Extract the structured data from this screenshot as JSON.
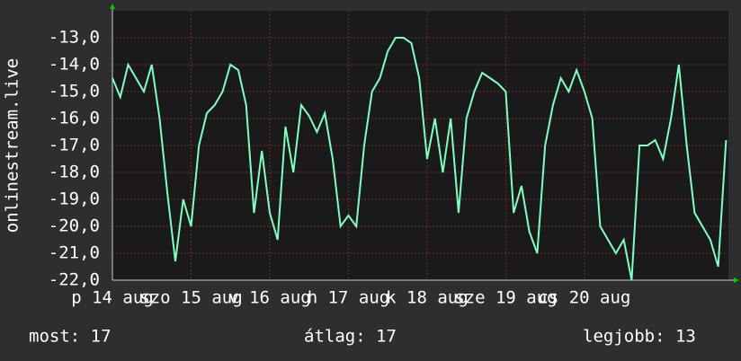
{
  "chart_data": {
    "type": "line",
    "ylabel": "onlinestream.live",
    "x": [
      0,
      0.1,
      0.2,
      0.3,
      0.4,
      0.5,
      0.6,
      0.7,
      0.8,
      0.9,
      1,
      1.1,
      1.2,
      1.3,
      1.4,
      1.5,
      1.6,
      1.7,
      1.8,
      1.9,
      2,
      2.1,
      2.2,
      2.3,
      2.4,
      2.5,
      2.6,
      2.7,
      2.8,
      2.9,
      3,
      3.1,
      3.2,
      3.3,
      3.4,
      3.5,
      3.6,
      3.7,
      3.8,
      3.9,
      4,
      4.1,
      4.2,
      4.3,
      4.4,
      4.5,
      4.6,
      4.7,
      4.8,
      4.9,
      5,
      5.1,
      5.2,
      5.3,
      5.4,
      5.5,
      5.6,
      5.7,
      5.8,
      5.9,
      6,
      6.1,
      6.2,
      6.3,
      6.4,
      6.5,
      6.6,
      6.7,
      6.8,
      6.9,
      7,
      7.1,
      7.2,
      7.3,
      7.4,
      7.5,
      7.6,
      7.7,
      7.8
    ],
    "series": [
      {
        "color": "#80ffc0",
        "values": [
          -14.5,
          -15.2,
          -14,
          -14.5,
          -15,
          -14,
          -16,
          -18.8,
          -21.3,
          -19,
          -20,
          -17,
          -15.8,
          -15.5,
          -15,
          -14,
          -14.2,
          -15.5,
          -19.5,
          -17.2,
          -19.5,
          -20.5,
          -16.3,
          -18,
          -15.5,
          -15.9,
          -16.5,
          -15.8,
          -17.5,
          -20,
          -19.6,
          -20,
          -17,
          -15,
          -14.5,
          -13.5,
          -13,
          -13,
          -13.2,
          -14.5,
          -17.5,
          -16,
          -18,
          -16,
          -19.5,
          -16,
          -15,
          -14.3,
          -14.5,
          -14.7,
          -15,
          -19.5,
          -18.5,
          -20.2,
          -21,
          -17,
          -15.5,
          -14.5,
          -15,
          -14.2,
          -15,
          -16,
          -20,
          -20.5,
          -21,
          -20.5,
          -22,
          -17,
          -17,
          -16.8,
          -17.5,
          -16,
          -14,
          -17,
          -19.5,
          -20,
          -20.5,
          -21.5,
          -16.8
        ]
      }
    ],
    "xlim": [
      0,
      7.83
    ],
    "xticks": [
      {
        "value": 0,
        "label": "p 14 aug"
      },
      {
        "value": 1,
        "label": "szo 15 aug"
      },
      {
        "value": 2,
        "label": "v 16 aug"
      },
      {
        "value": 3,
        "label": "h 17 aug"
      },
      {
        "value": 4,
        "label": "k 18 aug"
      },
      {
        "value": 5,
        "label": "sze 19 aug"
      },
      {
        "value": 6,
        "label": "cs 20 aug"
      }
    ],
    "ylim": [
      -22,
      -12
    ],
    "yticks": [
      {
        "value": -13,
        "label": "-13,0"
      },
      {
        "value": -14,
        "label": "-14,0"
      },
      {
        "value": -15,
        "label": "-15,0"
      },
      {
        "value": -16,
        "label": "-16,0"
      },
      {
        "value": -17,
        "label": "-17,0"
      },
      {
        "value": -18,
        "label": "-18,0"
      },
      {
        "value": -19,
        "label": "-19,0"
      },
      {
        "value": -20,
        "label": "-20,0"
      },
      {
        "value": -21,
        "label": "-21,0"
      },
      {
        "value": -22,
        "label": "-22,0"
      }
    ],
    "grid": true,
    "footer": [
      "most: 17",
      "átlag: 17",
      "legjobb: 13"
    ]
  }
}
